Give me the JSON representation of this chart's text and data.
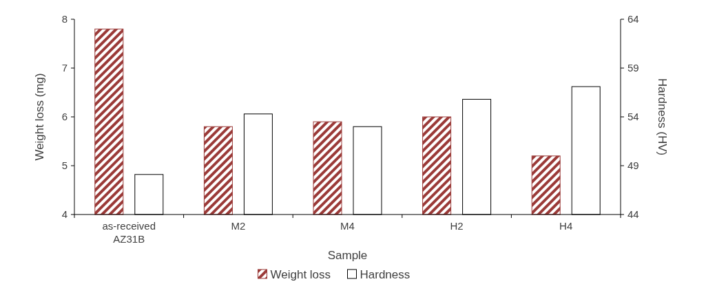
{
  "chart_data": {
    "type": "bar",
    "xlabel": "Sample",
    "ylabel": "Weight loss (mg)",
    "y2label": "Hardness (HV)",
    "categories": [
      "as-received\nAZ31B",
      "M2",
      "M4",
      "H2",
      "H4"
    ],
    "series": [
      {
        "name": "Weight loss",
        "color": "#9b3a38",
        "values": [
          7.8,
          5.8,
          5.9,
          6.0,
          5.2
        ]
      },
      {
        "name": "Hardness",
        "color": "#ffffff",
        "axis": "y2",
        "values": [
          48.1,
          54.3,
          53.0,
          55.8,
          57.1
        ]
      }
    ],
    "ylim": [
      4,
      8
    ],
    "yticks": [
      4,
      5,
      6,
      7,
      8
    ],
    "y2lim": [
      44,
      64
    ],
    "y2ticks": [
      44,
      49,
      54,
      59,
      64
    ],
    "legend": "bottom",
    "grid": false
  }
}
